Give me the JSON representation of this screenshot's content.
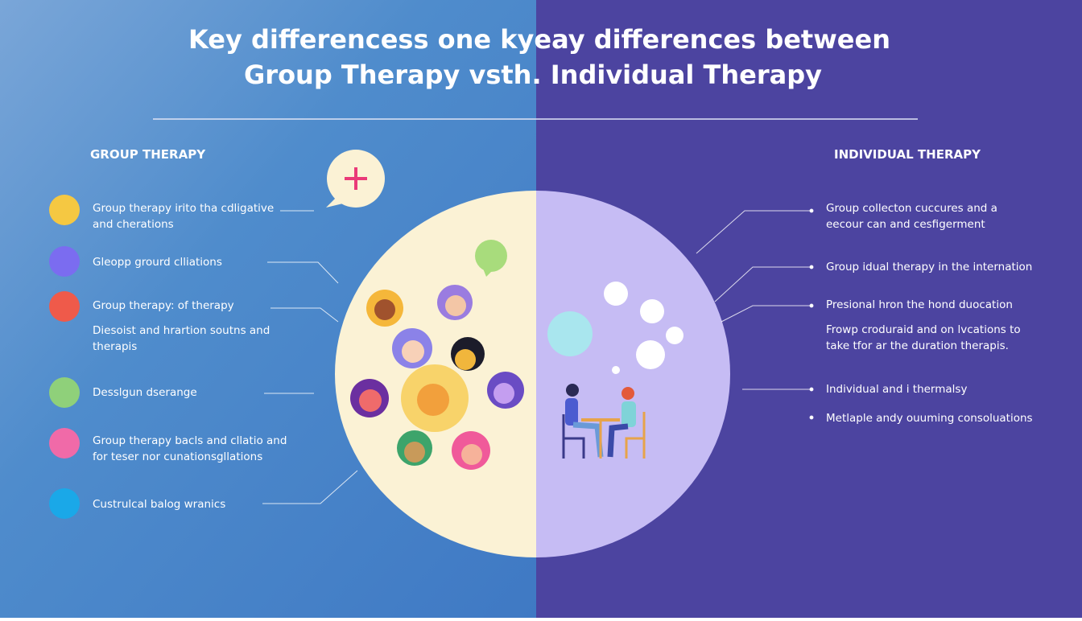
{
  "title": {
    "lines": [
      "Key differencess one kyeay differences between",
      "Group Therapy vsth. Individual Therapy"
    ]
  },
  "left": {
    "heading": "GROUP THERAPY",
    "items": [
      {
        "lines": [
          "Group therapy irito tha cdligative",
          "and cherations"
        ]
      },
      {
        "lines": [
          "Gleopp grourd clliations"
        ]
      },
      {
        "lines": [
          "Group therapy: of therapy"
        ]
      },
      {
        "lines": [
          "Diesoist and hrartion soutns and",
          "therapis"
        ]
      },
      {
        "lines": [
          "Desslgun dserange"
        ]
      },
      {
        "lines": [
          "Group therapy bacls and cllatio and",
          "for teser nor cunationsgllations"
        ]
      },
      {
        "lines": [
          "Custrulcal balog wranics"
        ]
      }
    ]
  },
  "right": {
    "heading": "INDIVIDUAL THERAPY",
    "items": [
      {
        "lines": [
          "Group collecton cuccures and a",
          "eecour can and cesfigerment"
        ]
      },
      {
        "lines": [
          "Group idual therapy in the internation"
        ]
      },
      {
        "lines": [
          "Presional hron the hond duocation"
        ]
      },
      {
        "lines": [
          "Frowp croduraid and on lvcations to",
          "take tfor ar the duration therapis."
        ]
      },
      {
        "lines": [
          "Individual and i thermalsy"
        ]
      },
      {
        "lines": [
          "Metlaple andy ouuming consoluations"
        ]
      }
    ]
  }
}
